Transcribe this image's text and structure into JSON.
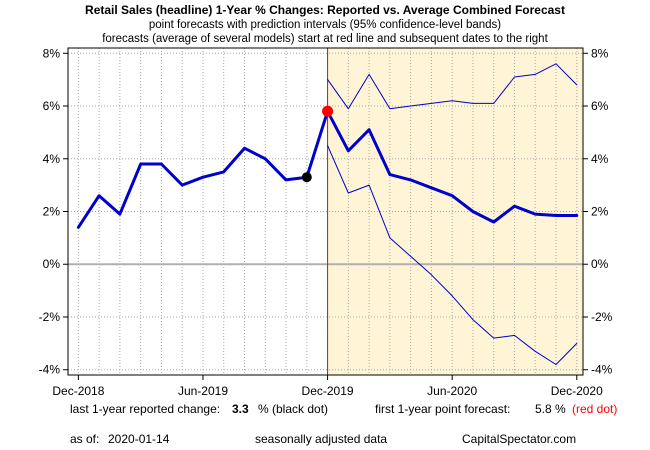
{
  "chart_data": {
    "type": "line",
    "title": "Retail Sales (headline) 1-Year % Changes: Reported vs. Average Combined Forecast",
    "subtitle_1": "point forecasts with prediction intervals (95% confidence-level bands)",
    "subtitle_2": "forecasts (average of several models) start at red line and subsequent dates to the right",
    "x_ticks": [
      "Dec-2018",
      "Jun-2019",
      "Dec-2019",
      "Jun-2020",
      "Dec-2020"
    ],
    "x_tick_index": [
      0,
      6,
      12,
      18,
      24
    ],
    "y_ticks": [
      "-4%",
      "-2%",
      "0%",
      "2%",
      "4%",
      "6%",
      "8%"
    ],
    "y_tick_values": [
      -4,
      -2,
      0,
      2,
      4,
      6,
      8
    ],
    "ylim": [
      -4.2,
      8.2
    ],
    "xlim": [
      -0.5,
      24.3
    ],
    "forecast_start_index": 12,
    "x": [
      "Dec-2018",
      "Jan-2019",
      "Feb-2019",
      "Mar-2019",
      "Apr-2019",
      "May-2019",
      "Jun-2019",
      "Jul-2019",
      "Aug-2019",
      "Sep-2019",
      "Oct-2019",
      "Nov-2019",
      "Dec-2019",
      "Jan-2020",
      "Feb-2020",
      "Mar-2020",
      "Apr-2020",
      "May-2020",
      "Jun-2020",
      "Jul-2020",
      "Aug-2020",
      "Sep-2020",
      "Oct-2020",
      "Nov-2020",
      "Dec-2020"
    ],
    "series": [
      {
        "role": "reported",
        "values": [
          1.4,
          2.6,
          1.9,
          3.8,
          3.8,
          3.0,
          3.3,
          3.5,
          4.4,
          4.0,
          3.2,
          3.3,
          null,
          null,
          null,
          null,
          null,
          null,
          null,
          null,
          null,
          null,
          null,
          null,
          null
        ]
      },
      {
        "role": "forecast",
        "values": [
          null,
          null,
          null,
          null,
          null,
          null,
          null,
          null,
          null,
          null,
          null,
          null,
          5.8,
          4.3,
          5.1,
          3.4,
          3.2,
          2.9,
          2.6,
          2.0,
          1.6,
          2.2,
          1.9,
          1.85,
          1.85
        ]
      },
      {
        "role": "upper",
        "values": [
          null,
          null,
          null,
          null,
          null,
          null,
          null,
          null,
          null,
          null,
          null,
          null,
          7.0,
          5.9,
          7.2,
          5.9,
          6.0,
          6.1,
          6.2,
          6.1,
          6.1,
          7.1,
          7.2,
          7.6,
          6.8
        ]
      },
      {
        "role": "lower",
        "values": [
          null,
          null,
          null,
          null,
          null,
          null,
          null,
          null,
          null,
          null,
          null,
          null,
          4.5,
          2.7,
          3.0,
          1.0,
          0.3,
          -0.4,
          -1.2,
          -2.1,
          -2.8,
          -2.7,
          -3.3,
          -3.8,
          -3.0
        ]
      }
    ],
    "last_reported": {
      "index": 11,
      "value": 3.3
    },
    "first_forecast": {
      "index": 12,
      "value": 5.8
    },
    "grid": true,
    "colors": {
      "line": "#0000cc",
      "forecast_marker": "#ff0000",
      "reported_marker": "#000000",
      "forecast_region": "#fff5d6",
      "zero_line": "#b0b0b0",
      "grid": "#aaaaaa"
    }
  },
  "footer": {
    "last_label": "last 1-year reported change:",
    "last_value": "3.3",
    "last_suffix": "% (black dot)",
    "first_label": "first 1-year point forecast:",
    "first_value": "5.8",
    "first_unit": "%",
    "first_suffix": "(red dot)",
    "asof_label": "as of:",
    "asof_value": "2020-01-14",
    "seasonal": "seasonally adjusted data",
    "source": "CapitalSpectator.com"
  }
}
